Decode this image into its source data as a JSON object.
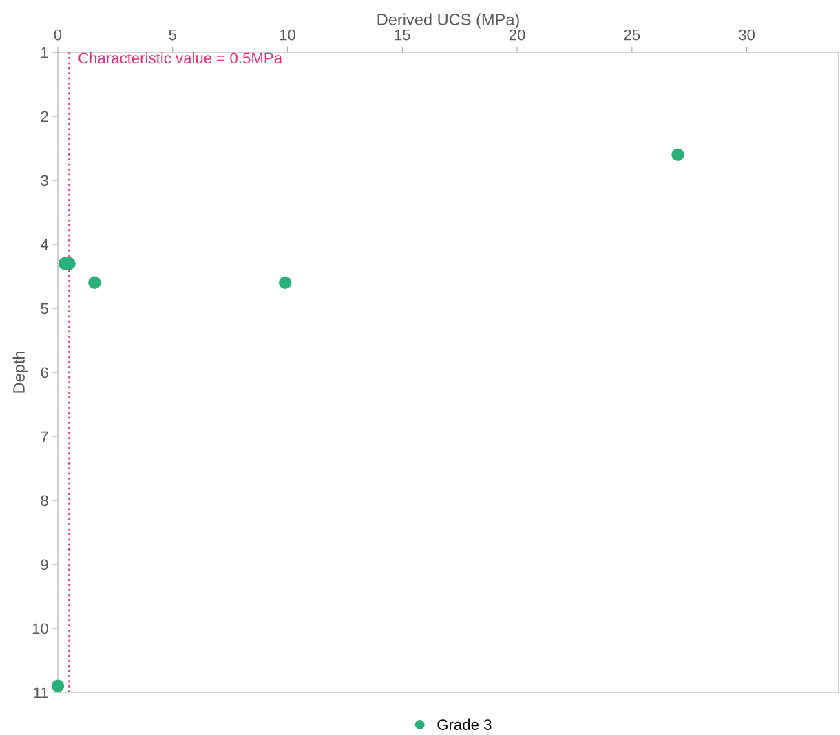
{
  "chart_data": {
    "type": "scatter",
    "xlabel": "Derived UCS (MPa)",
    "ylabel": "Depth",
    "xlim": [
      0,
      34
    ],
    "xticks": [
      0,
      5,
      10,
      15,
      20,
      25,
      30
    ],
    "ylim": [
      11,
      1
    ],
    "yticks": [
      1,
      2,
      3,
      4,
      5,
      6,
      7,
      8,
      9,
      10,
      11
    ],
    "series": [
      {
        "name": "Grade 3",
        "color": "#2bb07a",
        "x": [
          27.0,
          0.3,
          0.5,
          1.6,
          9.9,
          0.0
        ],
        "values": [
          2.6,
          4.3,
          4.3,
          4.6,
          4.6,
          10.9
        ]
      }
    ],
    "ref_lines": [
      {
        "axis": "x",
        "value": 0.5,
        "label": "Characteristic value = 0.5MPa",
        "color": "#e0307a",
        "line_style": "dotted"
      }
    ],
    "marker": "circle",
    "grid": false,
    "legend": "bottom"
  }
}
